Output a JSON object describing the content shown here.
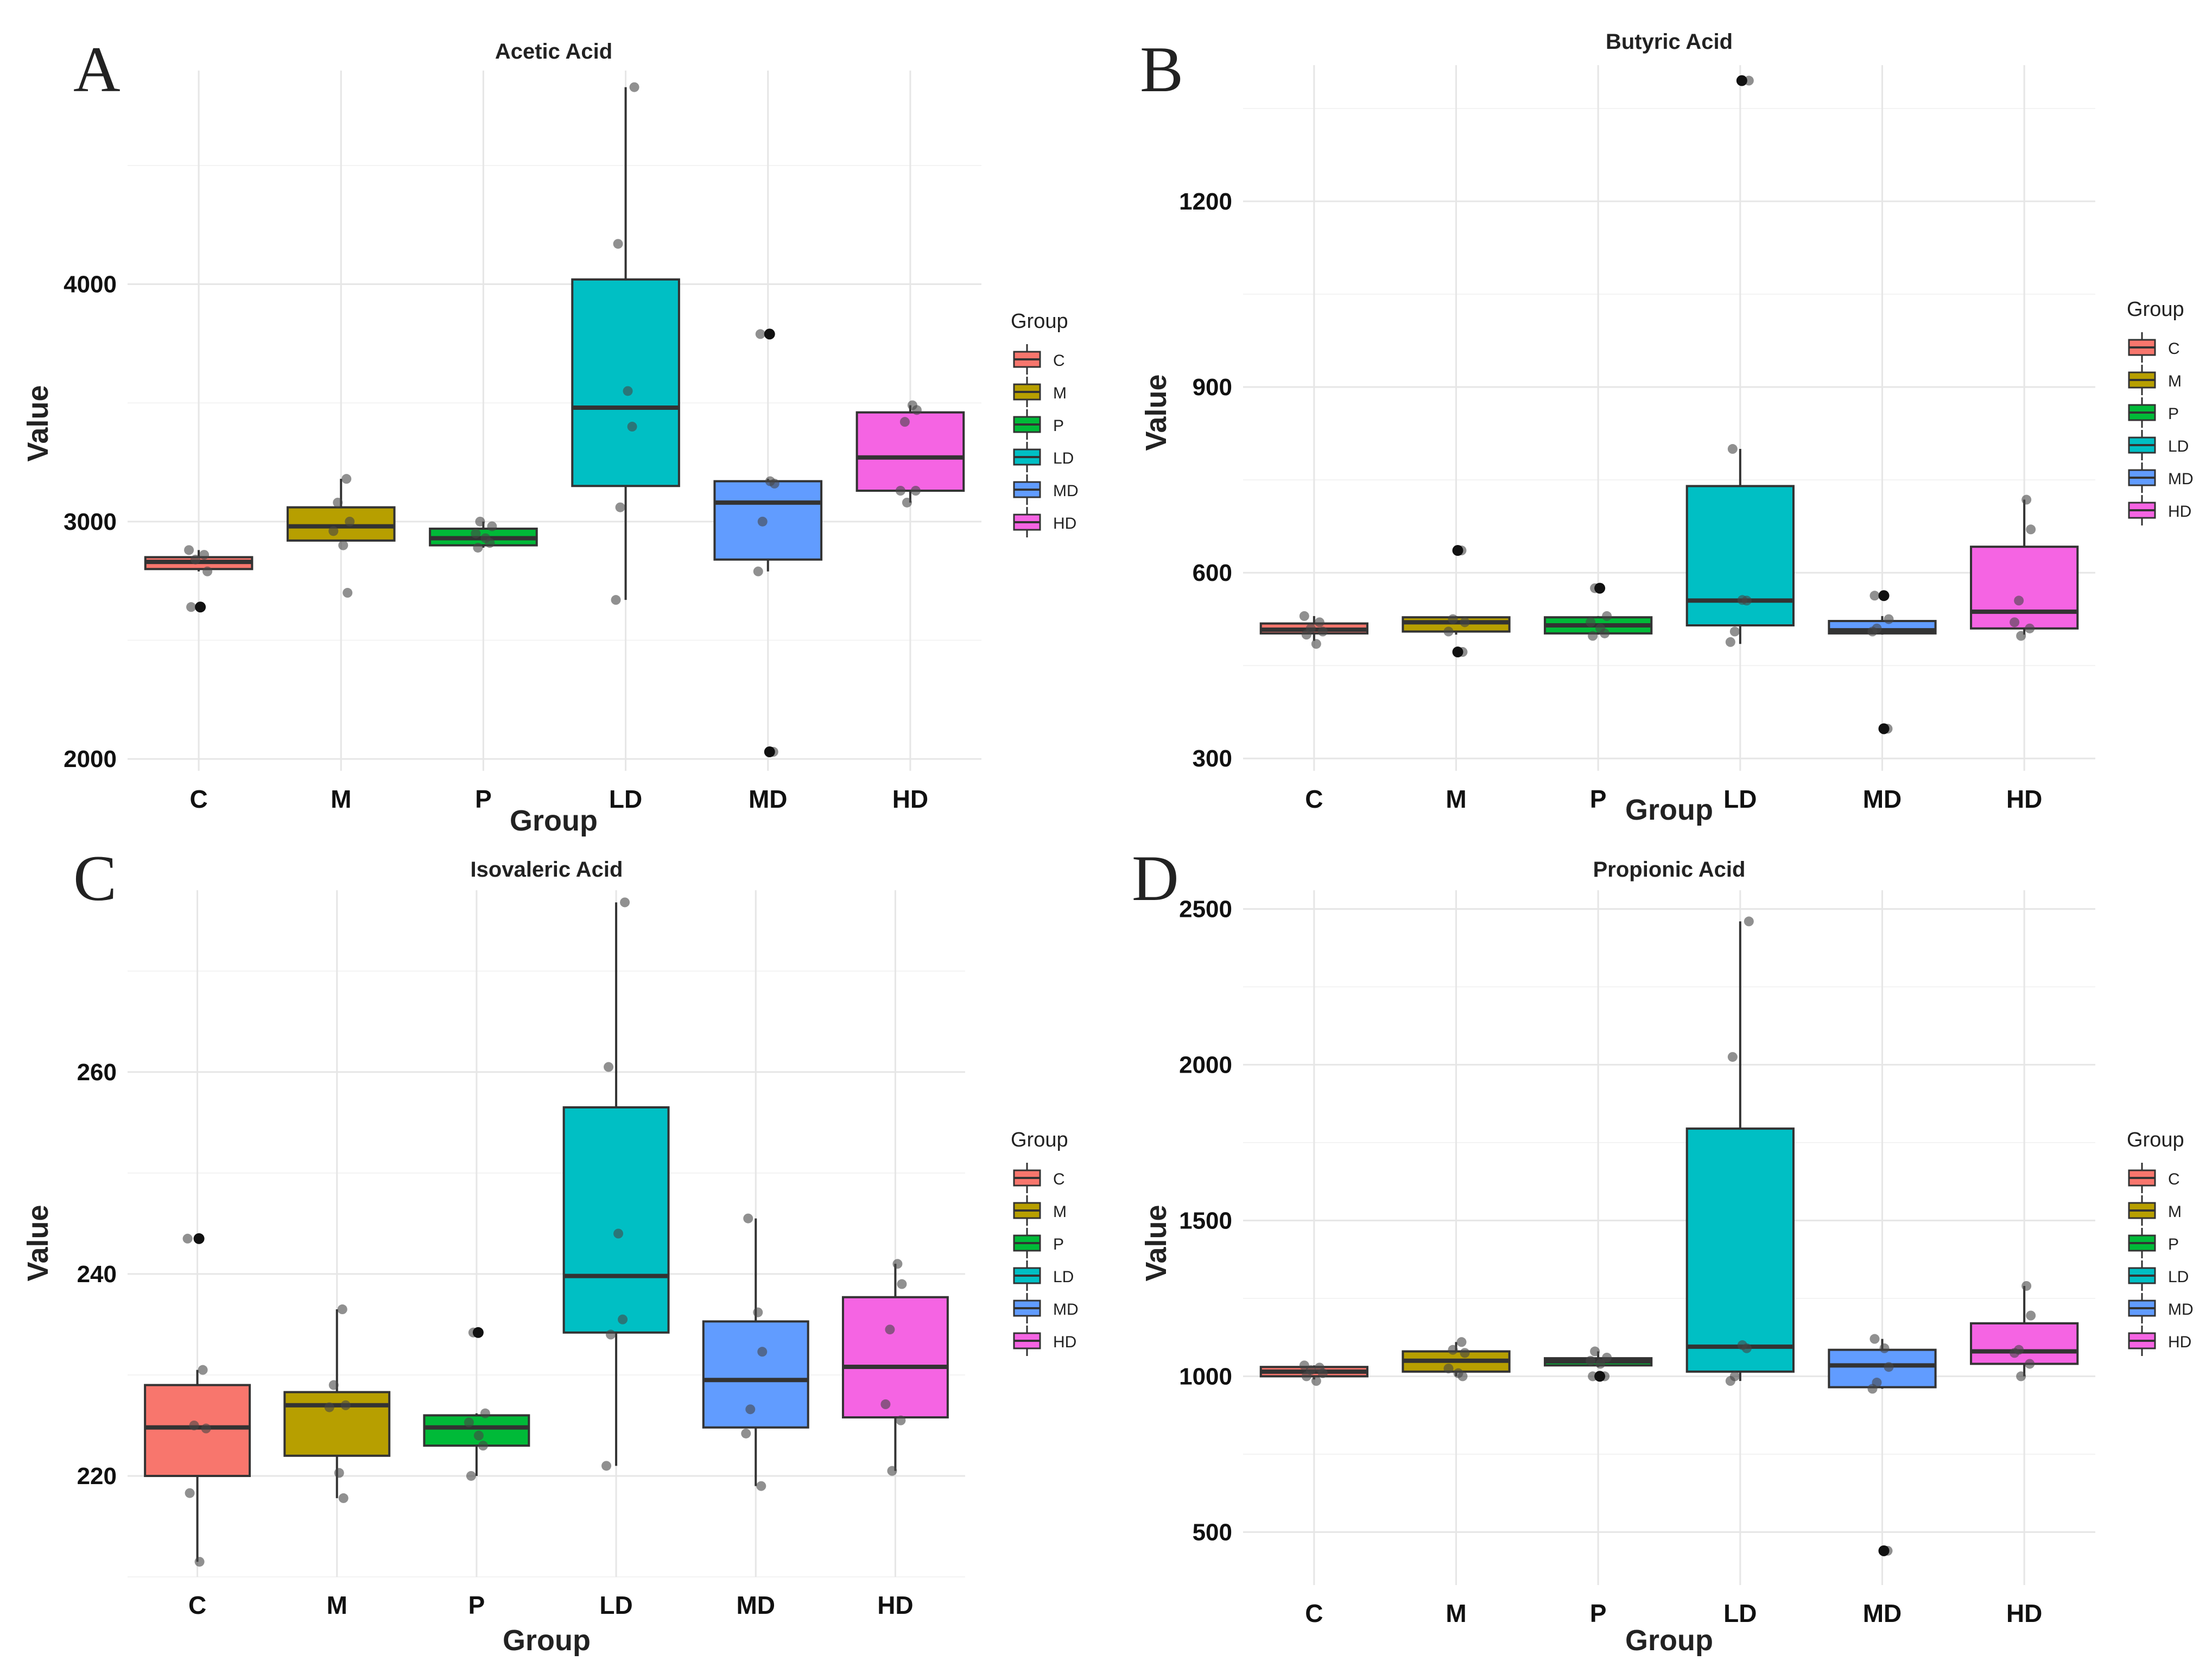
{
  "legend": {
    "title": "Group",
    "entries": [
      {
        "label": "C",
        "color": "#F8766D"
      },
      {
        "label": "M",
        "color": "#B79F00"
      },
      {
        "label": "P",
        "color": "#00BA38"
      },
      {
        "label": "LD",
        "color": "#00BFC4"
      },
      {
        "label": "MD",
        "color": "#619CFF"
      },
      {
        "label": "HD",
        "color": "#F564E3"
      }
    ]
  },
  "chart_data": [
    {
      "panel_label": "A",
      "type": "box",
      "title": "Acetic Acid",
      "xlabel": "Group",
      "ylabel": "Value",
      "categories": [
        "C",
        "M",
        "P",
        "LD",
        "MD",
        "HD"
      ],
      "ylim": [
        1950,
        4900
      ],
      "yticks": [
        2000,
        3000,
        4000
      ],
      "boxes": [
        {
          "q1": 2800,
          "median": 2830,
          "q3": 2850,
          "whisker_low": 2790,
          "whisker_high": 2880
        },
        {
          "q1": 2920,
          "median": 2980,
          "q3": 3060,
          "whisker_low": 2920,
          "whisker_high": 3180
        },
        {
          "q1": 2900,
          "median": 2930,
          "q3": 2970,
          "whisker_low": 2890,
          "whisker_high": 3000
        },
        {
          "q1": 3150,
          "median": 3480,
          "q3": 4020,
          "whisker_low": 2670,
          "whisker_high": 4830
        },
        {
          "q1": 2840,
          "median": 3080,
          "q3": 3170,
          "whisker_low": 2790,
          "whisker_high": 3180
        },
        {
          "q1": 3130,
          "median": 3270,
          "q3": 3460,
          "whisker_low": 3080,
          "whisker_high": 3490
        }
      ],
      "outliers": [
        [
          2640
        ],
        [],
        [],
        [],
        [
          3790,
          2030
        ],
        []
      ],
      "points": [
        [
          2880,
          2860,
          2840,
          2790,
          2640,
          2640
        ],
        [
          3180,
          3080,
          3000,
          2960,
          2900,
          2700
        ],
        [
          3000,
          2980,
          2950,
          2930,
          2910,
          2890
        ],
        [
          4830,
          4170,
          3550,
          3400,
          3060,
          2670
        ],
        [
          3790,
          3170,
          3160,
          3000,
          2790,
          2030
        ],
        [
          3490,
          3470,
          3420,
          3130,
          3130,
          3080
        ]
      ]
    },
    {
      "panel_label": "B",
      "type": "box",
      "title": "Butyric Acid",
      "xlabel": "Group",
      "ylabel": "Value",
      "categories": [
        "C",
        "M",
        "P",
        "LD",
        "MD",
        "HD"
      ],
      "ylim": [
        280,
        1420
      ],
      "yticks": [
        300,
        600,
        900,
        1200
      ],
      "boxes": [
        {
          "q1": 502,
          "median": 508,
          "q3": 518,
          "whisker_low": 490,
          "whisker_high": 530
        },
        {
          "q1": 505,
          "median": 520,
          "q3": 528,
          "whisker_low": 500,
          "whisker_high": 530
        },
        {
          "q1": 502,
          "median": 515,
          "q3": 528,
          "whisker_low": 500,
          "whisker_high": 530
        },
        {
          "q1": 515,
          "median": 555,
          "q3": 740,
          "whisker_low": 485,
          "whisker_high": 800
        },
        {
          "q1": 502,
          "median": 507,
          "q3": 522,
          "whisker_low": 500,
          "whisker_high": 530
        },
        {
          "q1": 510,
          "median": 537,
          "q3": 642,
          "whisker_low": 500,
          "whisker_high": 718
        }
      ],
      "outliers": [
        [],
        [
          636,
          472
        ],
        [
          575
        ],
        [
          1395
        ],
        [
          563,
          348
        ],
        []
      ],
      "points": [
        [
          530,
          520,
          510,
          505,
          500,
          485
        ],
        [
          636,
          525,
          520,
          505,
          472,
          472
        ],
        [
          575,
          530,
          520,
          510,
          502,
          498
        ],
        [
          1395,
          800,
          556,
          555,
          505,
          488
        ],
        [
          563,
          563,
          525,
          510,
          505,
          348
        ],
        [
          718,
          670,
          555,
          520,
          510,
          498
        ]
      ]
    },
    {
      "panel_label": "C",
      "type": "box",
      "title": "Isovaleric Acid",
      "xlabel": "Group",
      "ylabel": "Value",
      "categories": [
        "C",
        "M",
        "P",
        "LD",
        "MD",
        "HD"
      ],
      "ylim": [
        210,
        278
      ],
      "yticks": [
        220,
        240,
        260
      ],
      "boxes": [
        {
          "q1": 220,
          "median": 224.8,
          "q3": 229,
          "whisker_low": 211.5,
          "whisker_high": 230.5
        },
        {
          "q1": 222,
          "median": 227,
          "q3": 228.3,
          "whisker_low": 217.8,
          "whisker_high": 236.5
        },
        {
          "q1": 223,
          "median": 224.8,
          "q3": 226,
          "whisker_low": 220,
          "whisker_high": 226.2
        },
        {
          "q1": 234.2,
          "median": 239.8,
          "q3": 256.5,
          "whisker_low": 221,
          "whisker_high": 276.8
        },
        {
          "q1": 224.8,
          "median": 229.5,
          "q3": 235.3,
          "whisker_low": 219,
          "whisker_high": 245.5
        },
        {
          "q1": 225.8,
          "median": 230.8,
          "q3": 237.7,
          "whisker_low": 220.5,
          "whisker_high": 241
        }
      ],
      "outliers": [
        [
          243.5
        ],
        [],
        [
          234.2
        ],
        [],
        [],
        []
      ],
      "points": [
        [
          243.5,
          230.5,
          225,
          224.7,
          218.3,
          211.5
        ],
        [
          236.5,
          229,
          227,
          226.8,
          220.3,
          217.8
        ],
        [
          234.2,
          226.2,
          225.3,
          224,
          223,
          220
        ],
        [
          276.8,
          260.5,
          244,
          235.5,
          234,
          221
        ],
        [
          245.5,
          236.2,
          232.3,
          226.6,
          224.2,
          219
        ],
        [
          241,
          239,
          234.5,
          227.1,
          225.5,
          220.5
        ]
      ]
    },
    {
      "panel_label": "D",
      "type": "box",
      "title": "Propionic Acid",
      "xlabel": "Group",
      "ylabel": "Value",
      "categories": [
        "C",
        "M",
        "P",
        "LD",
        "MD",
        "HD"
      ],
      "ylim": [
        330,
        2560
      ],
      "yticks": [
        500,
        1000,
        1500,
        2000,
        2500
      ],
      "boxes": [
        {
          "q1": 1000,
          "median": 1015,
          "q3": 1030,
          "whisker_low": 990,
          "whisker_high": 1035
        },
        {
          "q1": 1015,
          "median": 1050,
          "q3": 1080,
          "whisker_low": 1000,
          "whisker_high": 1110
        },
        {
          "q1": 1035,
          "median": 1048,
          "q3": 1058,
          "whisker_low": 1030,
          "whisker_high": 1080
        },
        {
          "q1": 1015,
          "median": 1095,
          "q3": 1795,
          "whisker_low": 985,
          "whisker_high": 2460
        },
        {
          "q1": 965,
          "median": 1035,
          "q3": 1085,
          "whisker_low": 960,
          "whisker_high": 1120
        },
        {
          "q1": 1040,
          "median": 1080,
          "q3": 1170,
          "whisker_low": 1000,
          "whisker_high": 1290
        }
      ],
      "outliers": [
        [],
        [],
        [
          1000
        ],
        [],
        [
          440
        ],
        []
      ],
      "points": [
        [
          1035,
          1028,
          1020,
          1010,
          1000,
          985
        ],
        [
          1110,
          1085,
          1075,
          1025,
          1010,
          1000
        ],
        [
          1080,
          1060,
          1050,
          1040,
          1000,
          1000
        ],
        [
          2460,
          2025,
          1100,
          1090,
          1000,
          985
        ],
        [
          1120,
          1090,
          1030,
          980,
          960,
          440
        ],
        [
          1290,
          1195,
          1085,
          1075,
          1040,
          1000
        ]
      ]
    }
  ]
}
